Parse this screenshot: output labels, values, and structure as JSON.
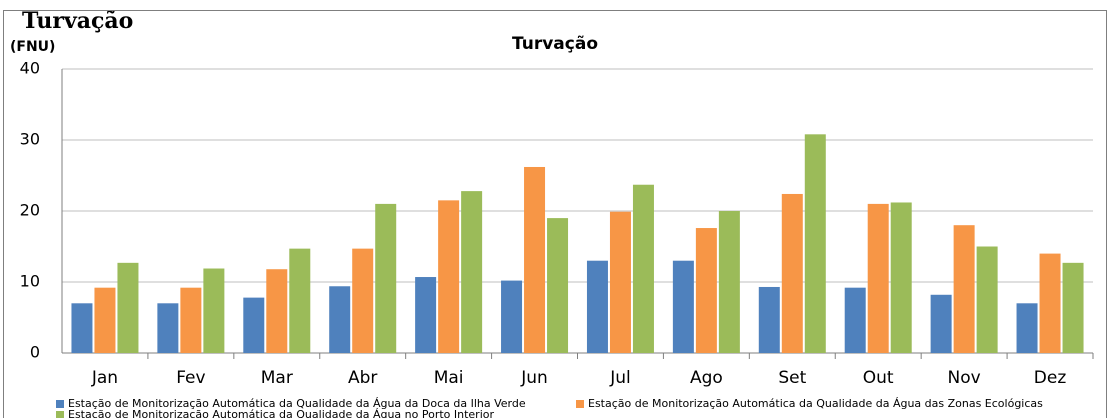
{
  "heading": "Turvação",
  "chart_data": {
    "type": "bar",
    "title": "Turvação",
    "y_label": "(FNU)",
    "categories": [
      "Jan",
      "Fev",
      "Mar",
      "Abr",
      "Mai",
      "Jun",
      "Jul",
      "Ago",
      "Set",
      "Out",
      "Nov",
      "Dez"
    ],
    "series": [
      {
        "name": "Estação de Monitorização Automática da Qualidade da Água da Doca da Ilha Verde",
        "color": "#4f81bd",
        "values": [
          7.0,
          7.0,
          7.8,
          9.4,
          10.7,
          10.2,
          13.0,
          13.0,
          9.3,
          9.2,
          8.2,
          7.0
        ]
      },
      {
        "name": "Estação de Monitorização Automática da Qualidade da Água das Zonas Ecológicas",
        "color": "#f79646",
        "values": [
          9.2,
          9.2,
          11.8,
          14.7,
          21.5,
          26.2,
          19.9,
          17.6,
          22.4,
          21.0,
          18.0,
          14.0
        ]
      },
      {
        "name": "Estação de Monitorização Automática da Qualidade da Água no Porto Interior",
        "color": "#9bbb59",
        "values": [
          12.7,
          11.9,
          14.7,
          21.0,
          22.8,
          19.0,
          23.7,
          20.0,
          30.8,
          21.2,
          15.0,
          12.7
        ]
      }
    ],
    "ylim": [
      0,
      40
    ],
    "yticks": [
      0,
      10,
      20,
      30,
      40
    ],
    "grid": true
  }
}
